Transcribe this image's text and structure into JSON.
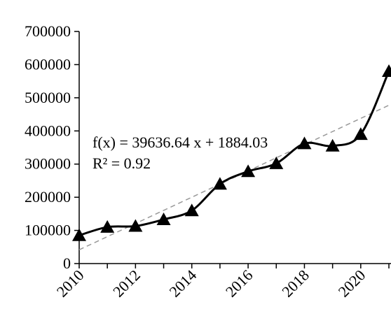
{
  "chart_data": {
    "type": "line",
    "x": [
      2010,
      2011,
      2012,
      2013,
      2014,
      2015,
      2016,
      2017,
      2018,
      2019,
      2020,
      2021
    ],
    "series": [
      {
        "values": [
          85000,
          110000,
          113000,
          133000,
          160000,
          240000,
          278000,
          302000,
          362000,
          355000,
          390000,
          580000
        ],
        "marker": "triangle",
        "color": "#000000",
        "smooth": true
      }
    ],
    "trendline": {
      "type": "linear",
      "slope": 39636.64,
      "intercept": 1884.03,
      "color": "#999999",
      "style": "dashed"
    },
    "annotation": {
      "equation": "f(x) = 39636.64 x + 1884.03",
      "r_squared": "R² = 0.92"
    },
    "xlim": [
      2010,
      2021
    ],
    "ylim": [
      0,
      700000
    ],
    "y_ticks": [
      "0",
      "100000",
      "200000",
      "300000",
      "400000",
      "500000",
      "600000",
      "700000"
    ],
    "x_ticks": [
      "2010",
      "2012",
      "2014",
      "2016",
      "2018",
      "2020"
    ],
    "title": "",
    "xlabel": "",
    "ylabel": "",
    "grid": false,
    "legend": "none"
  }
}
